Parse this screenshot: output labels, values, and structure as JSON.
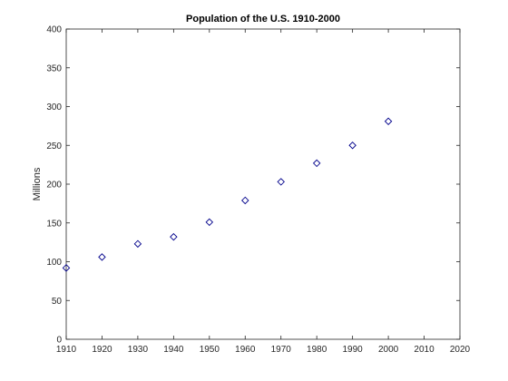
{
  "chart_data": {
    "type": "scatter",
    "title": "Population of the U.S. 1910-2000",
    "xlabel": "",
    "ylabel": "Millions",
    "xlim": [
      1910,
      2020
    ],
    "ylim": [
      0,
      400
    ],
    "xticks": [
      "1910",
      "1920",
      "1930",
      "1940",
      "1950",
      "1960",
      "1970",
      "1980",
      "1990",
      "2000",
      "2010",
      "2020"
    ],
    "yticks": [
      "0",
      "50",
      "100",
      "150",
      "200",
      "250",
      "300",
      "350",
      "400"
    ],
    "grid": false,
    "marker": "diamond",
    "marker_color": "#00008b",
    "series": [
      {
        "x": [
          1910,
          1920,
          1930,
          1940,
          1950,
          1960,
          1970,
          1980,
          1990,
          2000
        ],
        "values": [
          92,
          106,
          123,
          132,
          151,
          179,
          203,
          227,
          250,
          281
        ]
      }
    ]
  }
}
